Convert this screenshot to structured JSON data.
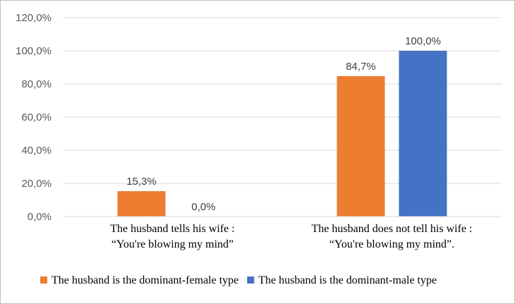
{
  "chart_data": {
    "type": "bar",
    "categories": [
      [
        "The husband tells his wife :",
        "“You're blowing my mind”"
      ],
      [
        "The husband does not tell his wife :",
        "“You're blowing my mind”."
      ]
    ],
    "series": [
      {
        "name": "The husband is the dominant-female type",
        "color": "#ED7D31",
        "values": [
          15.3,
          84.7
        ],
        "labels": [
          "15,3%",
          "84,7%"
        ]
      },
      {
        "name": "The husband is the dominant-male type",
        "color": "#4472C4",
        "values": [
          0.0,
          100.0
        ],
        "labels": [
          "0,0%",
          "100,0%"
        ]
      }
    ],
    "ylim": [
      0,
      120
    ],
    "yticks": [
      "0,0%",
      "20,0%",
      "40,0%",
      "60,0%",
      "80,0%",
      "100,0%",
      "120,0%"
    ],
    "grid": true,
    "legend_position": "bottom"
  }
}
